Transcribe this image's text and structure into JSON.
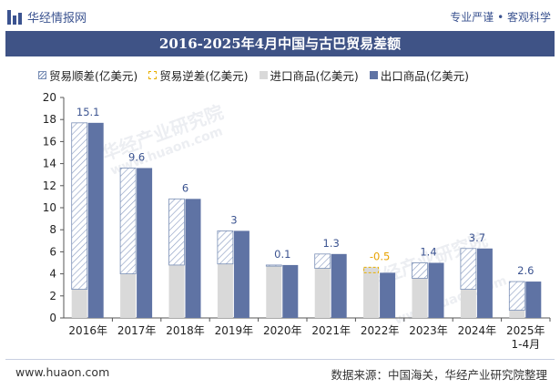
{
  "header": {
    "brand": "华经情报网",
    "slogan": "专业严谨 • 客观科学"
  },
  "watermarks": {
    "cn": "华经产业研究院",
    "url": "www.huaon.com"
  },
  "footer": {
    "website": "www.huaon.com",
    "source": "数据来源：中国海关，华经产业研究院整理"
  },
  "colors": {
    "header_bg": "#3f5386",
    "export_bar": "#5f73a4",
    "import_bar": "#d9d9d9",
    "surplus_hatch": "#7a8fb6",
    "deficit_outline": "#e8b000",
    "surplus_label": "#3b5390",
    "deficit_label": "#e8a200"
  },
  "chart_data": {
    "type": "bar",
    "title": "2016-2025年4月中国与古巴贸易差额",
    "categories": [
      "2016年",
      "2017年",
      "2018年",
      "2019年",
      "2020年",
      "2021年",
      "2022年",
      "2023年",
      "2024年",
      "2025年 1-4月"
    ],
    "series": [
      {
        "name": "贸易顺差(亿美元)",
        "values": [
          15.1,
          9.6,
          6,
          3,
          0.1,
          1.3,
          null,
          1.4,
          3.7,
          2.6
        ]
      },
      {
        "name": "贸易逆差(亿美元)",
        "values": [
          null,
          null,
          null,
          null,
          null,
          null,
          -0.5,
          null,
          null,
          null
        ]
      },
      {
        "name": "进口商品(亿美元)",
        "values": [
          2.6,
          4.0,
          4.8,
          4.9,
          4.7,
          4.5,
          4.6,
          3.6,
          2.6,
          0.7
        ]
      },
      {
        "name": "出口商品(亿美元)",
        "values": [
          17.7,
          13.6,
          10.8,
          7.9,
          4.8,
          5.8,
          4.1,
          5.0,
          6.3,
          3.3
        ]
      }
    ],
    "data_labels": [
      "15.1",
      "9.6",
      "6",
      "3",
      "0.1",
      "1.3",
      "-0.5",
      "1.4",
      "3.7",
      "2.6"
    ],
    "ylim": [
      0,
      20
    ],
    "yticks": [
      "0",
      "2",
      "4",
      "6",
      "8",
      "10",
      "12",
      "14",
      "16",
      "18",
      "20"
    ],
    "legend_position": "top-left"
  }
}
